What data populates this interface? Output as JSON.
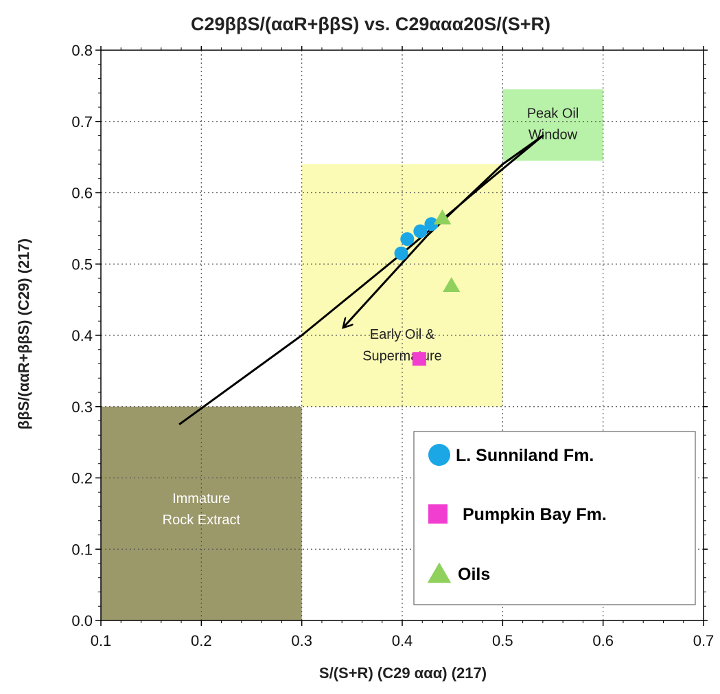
{
  "chart_data": {
    "type": "scatter",
    "title": "C29ββS/(ααR+ββS) vs. C29ααα20S/(S+R)",
    "xlabel": "S/(S+R) (C29 ααα) (217)",
    "ylabel": "ββS/(ααR+ββS) (C29) (217)",
    "xlim": [
      0.1,
      0.7
    ],
    "ylim": [
      0.0,
      0.8
    ],
    "x_ticks": [
      "0.1",
      "0.2",
      "0.3",
      "0.4",
      "0.5",
      "0.6",
      "0.7"
    ],
    "y_ticks": [
      "0.0",
      "0.1",
      "0.2",
      "0.3",
      "0.4",
      "0.5",
      "0.6",
      "0.7",
      "0.8"
    ],
    "grid": true,
    "legend_position": "bottom-right",
    "regions": [
      {
        "label_lines": [
          "Immature",
          "Rock Extract"
        ],
        "x": [
          0.1,
          0.3
        ],
        "y": [
          0.0,
          0.3
        ],
        "color": "#9b986a",
        "text_color": "#ffffff",
        "label_x": 0.2,
        "label_y": [
          0.165,
          0.135
        ]
      },
      {
        "label_lines": [
          "Early Oil &",
          "Supermature"
        ],
        "x": [
          0.3,
          0.5
        ],
        "y": [
          0.3,
          0.64
        ],
        "color": "#fbfbb5",
        "text_color": "#222222",
        "label_x": 0.4,
        "label_y": [
          0.395,
          0.365
        ]
      },
      {
        "label_lines": [
          "Peak Oil",
          "Window"
        ],
        "x": [
          0.5,
          0.6
        ],
        "y": [
          0.645,
          0.745
        ],
        "color": "#b8f1a8",
        "text_color": "#222222",
        "label_x": 0.55,
        "label_y": [
          0.705,
          0.675
        ]
      }
    ],
    "series": [
      {
        "name": "L. Sunniland Fm.",
        "marker": "circle",
        "color": "#1ba7e6",
        "points": [
          [
            0.399,
            0.515
          ],
          [
            0.405,
            0.535
          ],
          [
            0.418,
            0.546
          ],
          [
            0.429,
            0.556
          ]
        ]
      },
      {
        "name": "Pumpkin Bay Fm.",
        "marker": "square",
        "color": "#f23ed0",
        "points": [
          [
            0.417,
            0.367
          ]
        ]
      },
      {
        "name": "Oils",
        "marker": "triangle",
        "color": "#8fd15c",
        "points": [
          [
            0.44,
            0.565
          ],
          [
            0.449,
            0.47
          ]
        ]
      }
    ],
    "arrow_path": [
      [
        0.178,
        0.275
      ],
      [
        0.3,
        0.4
      ],
      [
        0.4,
        0.515
      ],
      [
        0.48,
        0.61
      ],
      [
        0.54,
        0.68
      ],
      [
        0.5,
        0.64
      ],
      [
        0.425,
        0.54
      ],
      [
        0.342,
        0.412
      ]
    ]
  }
}
